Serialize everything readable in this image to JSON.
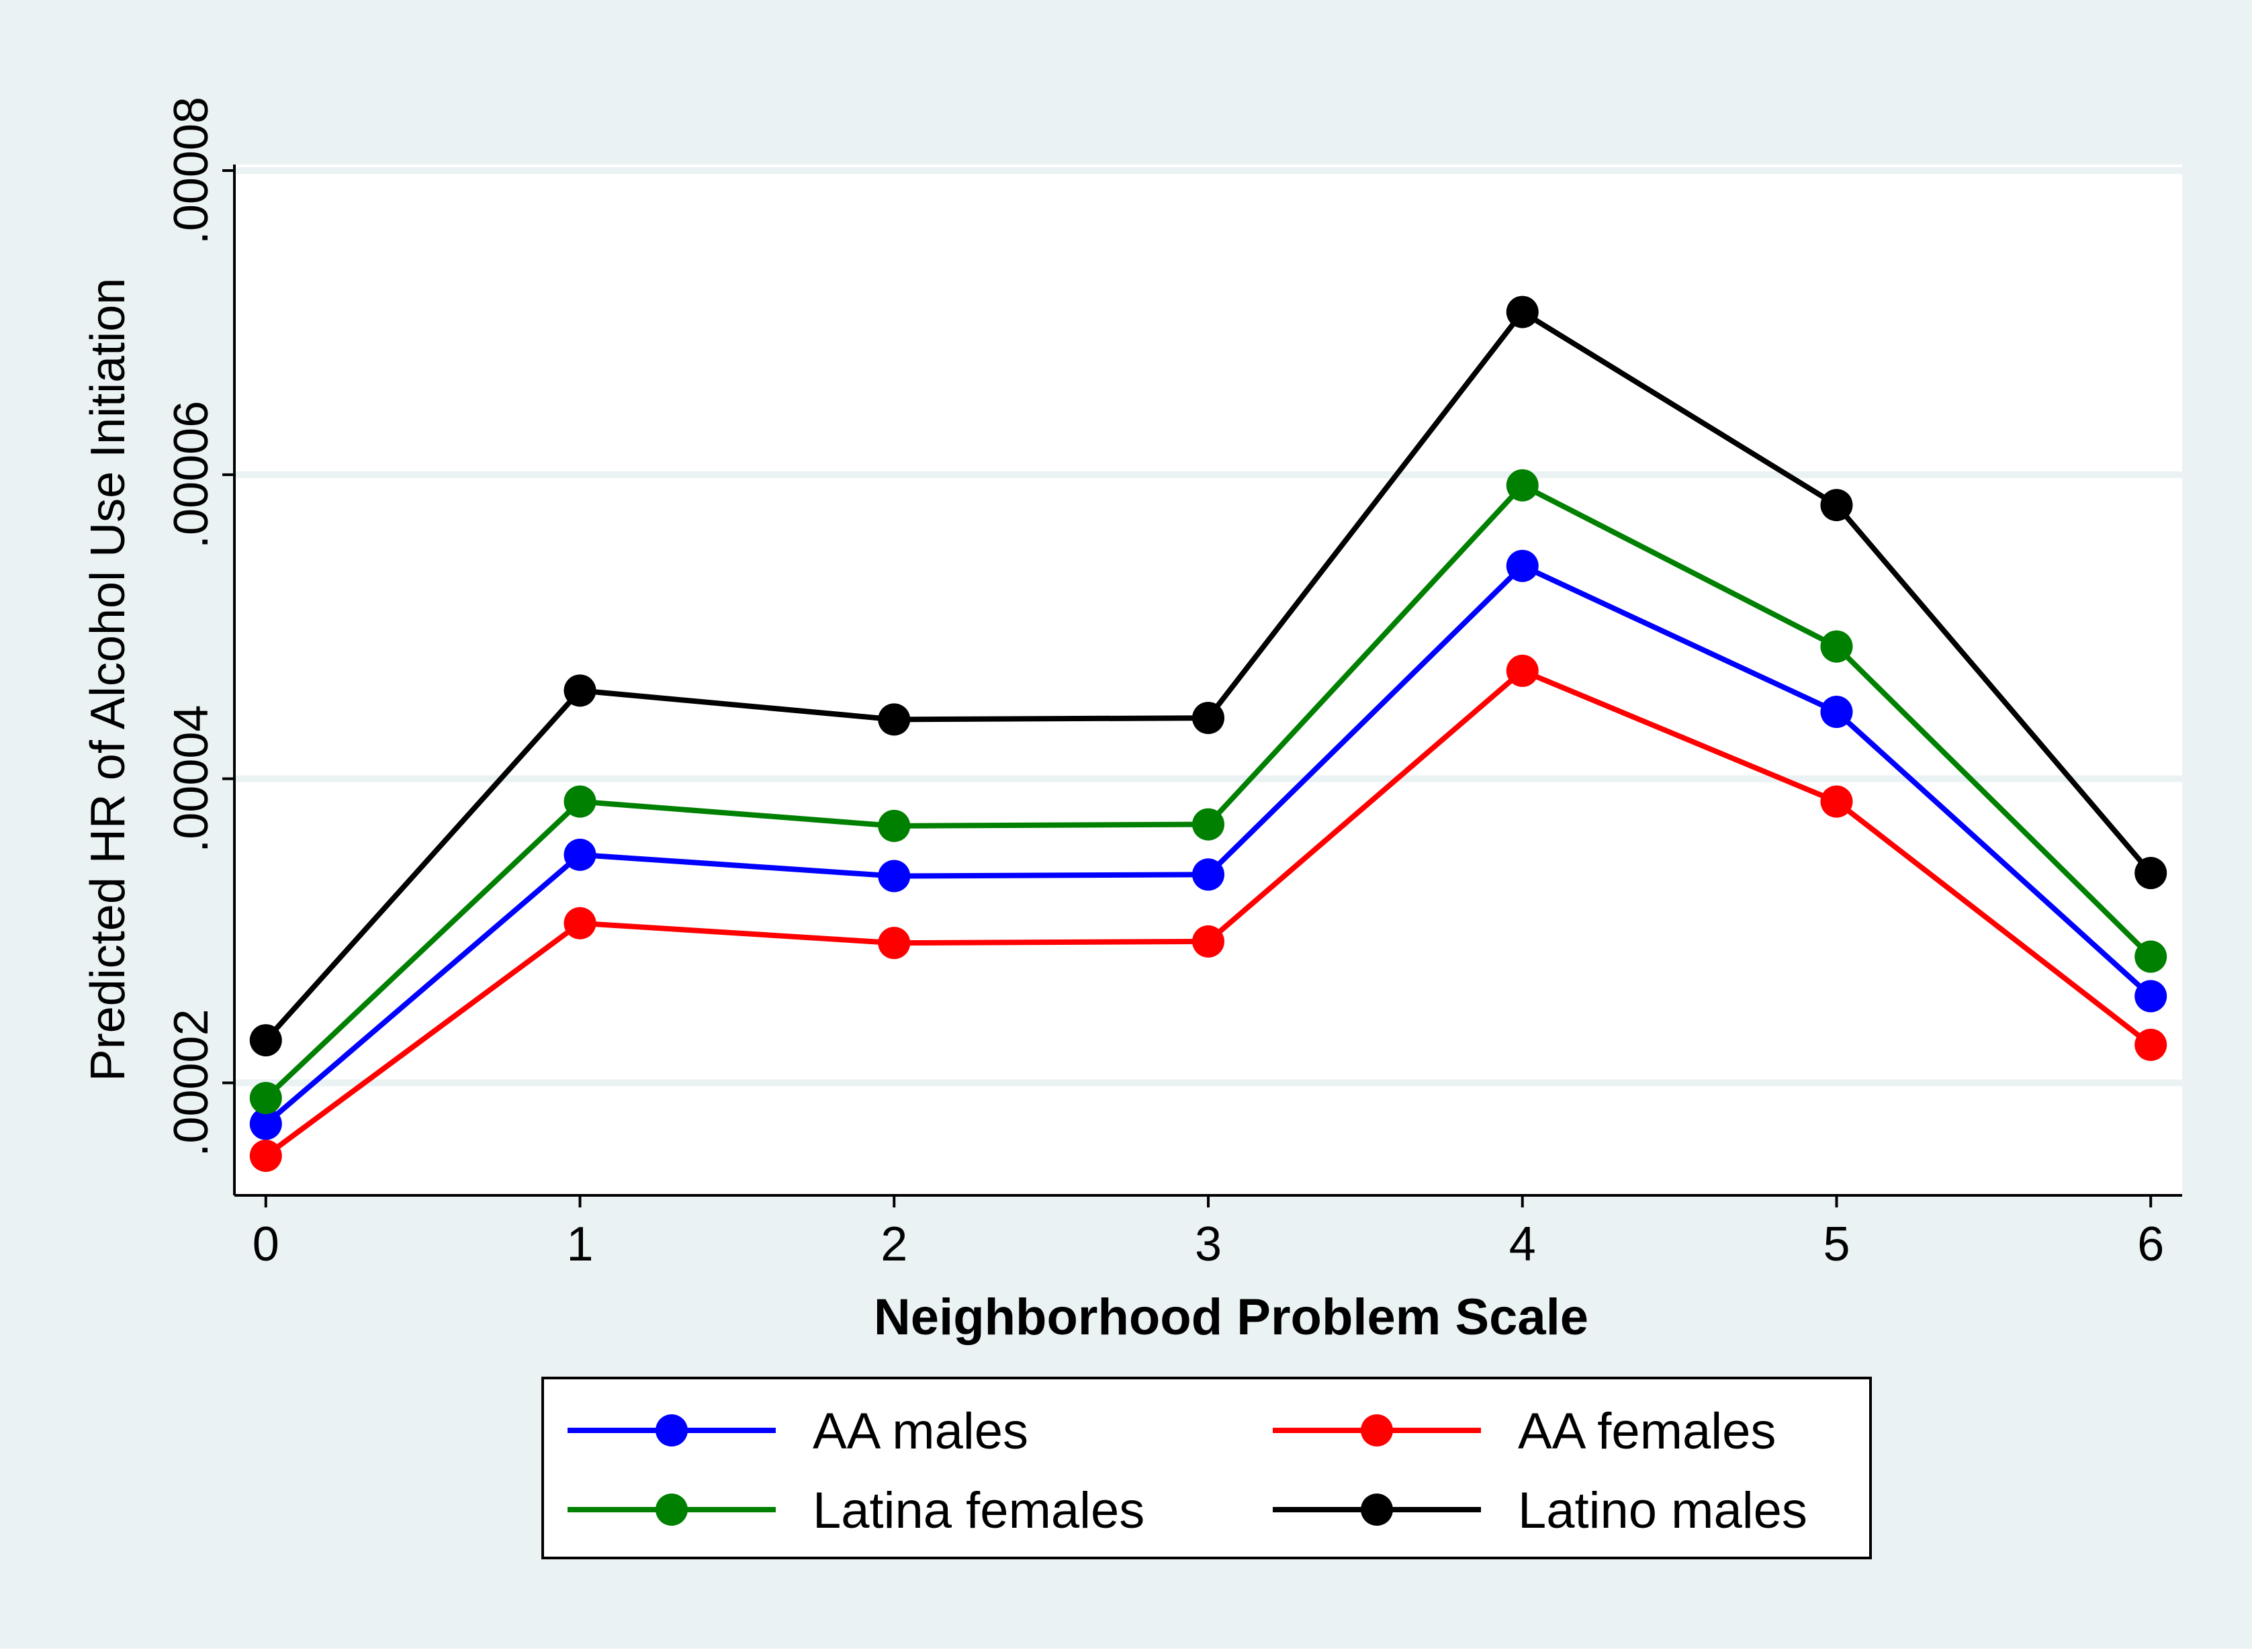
{
  "chart_data": {
    "type": "line",
    "title": "",
    "xlabel": "Neighborhood Problem Scale",
    "ylabel": "Predicted HR of Alcohol Use Initiation",
    "x": [
      0,
      1,
      2,
      3,
      4,
      5,
      6
    ],
    "x_tick_labels": [
      "0",
      "1",
      "2",
      "3",
      "4",
      "5",
      "6"
    ],
    "y_ticks": [
      2e-05,
      4e-05,
      6e-05,
      8e-05
    ],
    "y_tick_labels": [
      ".00002",
      ".00004",
      ".00006",
      ".00008"
    ],
    "xlim": [
      -0.1,
      6.1
    ],
    "ylim": [
      1.26e-05,
      8.04e-05
    ],
    "grid": true,
    "legend_position": "bottom",
    "colors": {
      "page_background": "#eaf2f3",
      "plot_background": "#ffffff",
      "grid": "#eaf2f3",
      "axis": "#000000"
    },
    "series": [
      {
        "name": "AA males",
        "color": "#0000ff",
        "values": [
          1.73e-05,
          3.5e-05,
          3.36e-05,
          3.37e-05,
          5.4e-05,
          4.44e-05,
          2.57e-05
        ]
      },
      {
        "name": "AA females",
        "color": "#ff0000",
        "values": [
          1.52e-05,
          3.05e-05,
          2.92e-05,
          2.93e-05,
          4.71e-05,
          3.85e-05,
          2.25e-05
        ]
      },
      {
        "name": "Latina females",
        "color": "#008000",
        "values": [
          1.9e-05,
          3.85e-05,
          3.69e-05,
          3.7e-05,
          5.93e-05,
          4.87e-05,
          2.83e-05
        ]
      },
      {
        "name": "Latino males",
        "color": "#000000",
        "values": [
          2.28e-05,
          4.58e-05,
          4.39e-05,
          4.4e-05,
          7.07e-05,
          5.8e-05,
          3.38e-05
        ]
      }
    ]
  }
}
